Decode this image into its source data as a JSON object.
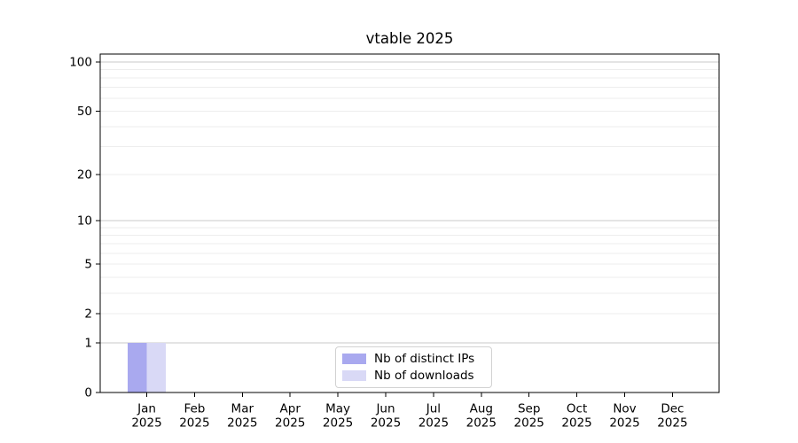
{
  "title": "vtable 2025",
  "chart_data": {
    "type": "bar",
    "title": "vtable 2025",
    "categories": [
      "Jan",
      "Feb",
      "Mar",
      "Apr",
      "May",
      "Jun",
      "Jul",
      "Aug",
      "Sep",
      "Oct",
      "Nov",
      "Dec"
    ],
    "category_year": "2025",
    "series": [
      {
        "name": "Nb of distinct IPs",
        "color": "#a9a9ef",
        "values": [
          1,
          0,
          0,
          0,
          0,
          0,
          0,
          0,
          0,
          0,
          0,
          0
        ]
      },
      {
        "name": "Nb of downloads",
        "color": "#d9d9f6",
        "values": [
          1,
          0,
          0,
          0,
          0,
          0,
          0,
          0,
          0,
          0,
          0,
          0
        ]
      }
    ],
    "xlabel": "",
    "ylabel": "",
    "yscale": "log1p",
    "ylim": [
      0,
      112
    ],
    "yticks": [
      0,
      1,
      2,
      5,
      10,
      20,
      50,
      100
    ],
    "grid": {
      "on": true,
      "major_lines": [
        1,
        10,
        100
      ],
      "minor_lines": [
        2,
        3,
        4,
        5,
        6,
        7,
        8,
        9,
        20,
        30,
        40,
        50,
        60,
        70,
        80,
        90
      ],
      "major_color": "#c9c9c9",
      "minor_color": "#ededed"
    },
    "legend": {
      "position": "lower-center",
      "entries": [
        "Nb of distinct IPs",
        "Nb of downloads"
      ]
    },
    "axis_color": "#000000",
    "tick_label_color": "#000000",
    "background_color": "#ffffff"
  }
}
